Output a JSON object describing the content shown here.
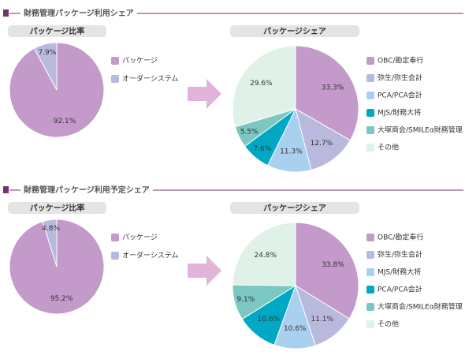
{
  "sections": [
    {
      "title": "財務管理パッケージ利用シェア"
    },
    {
      "title": "財務管理パッケージ利用予定シェア"
    }
  ],
  "chart_data": [
    {
      "type": "pie",
      "title": "パッケージ比率",
      "categories": [
        "パッケージ",
        "オーダーシステム"
      ],
      "values": [
        92.1,
        7.9
      ],
      "value_labels": [
        "92.1%",
        "7.9%"
      ],
      "colors": [
        "#c39ac9",
        "#b9b9dd"
      ]
    },
    {
      "type": "pie",
      "title": "パッケージシェア",
      "categories": [
        "OBC/勘定奉行",
        "弥生/弥生会計",
        "PCA/PCA会計",
        "MJS/財務大将",
        "大塚商会/SMILEα財務管理",
        "その他"
      ],
      "values": [
        33.3,
        12.7,
        11.3,
        7.6,
        5.5,
        29.6
      ],
      "value_labels": [
        "33.3%",
        "12.7%",
        "11.3%",
        "7.6%",
        "5.5%",
        "29.6%"
      ],
      "colors": [
        "#c39ac9",
        "#b9b9dd",
        "#a9d0ef",
        "#00a8c6",
        "#7cc7c1",
        "#e0f1e8"
      ]
    },
    {
      "type": "pie",
      "title": "パッケージ比率",
      "categories": [
        "パッケージ",
        "オーダーシステム"
      ],
      "values": [
        95.2,
        4.8
      ],
      "value_labels": [
        "95.2%",
        "4.8%"
      ],
      "colors": [
        "#c39ac9",
        "#b9b9dd"
      ]
    },
    {
      "type": "pie",
      "title": "パッケージシェア",
      "categories": [
        "OBC/勘定奉行",
        "弥生/弥生会計",
        "MJS/財務大将",
        "PCA/PCA会計",
        "大塚商会/SMILEα財務管理",
        "その他"
      ],
      "values": [
        33.8,
        11.1,
        10.6,
        10.6,
        9.1,
        24.8
      ],
      "value_labels": [
        "33.8%",
        "11.1%",
        "10.6%",
        "10.6%",
        "9.1%",
        "24.8%"
      ],
      "colors": [
        "#c39ac9",
        "#b9b9dd",
        "#a9d0ef",
        "#00a8c6",
        "#7cc7c1",
        "#e0f1e8"
      ]
    }
  ]
}
